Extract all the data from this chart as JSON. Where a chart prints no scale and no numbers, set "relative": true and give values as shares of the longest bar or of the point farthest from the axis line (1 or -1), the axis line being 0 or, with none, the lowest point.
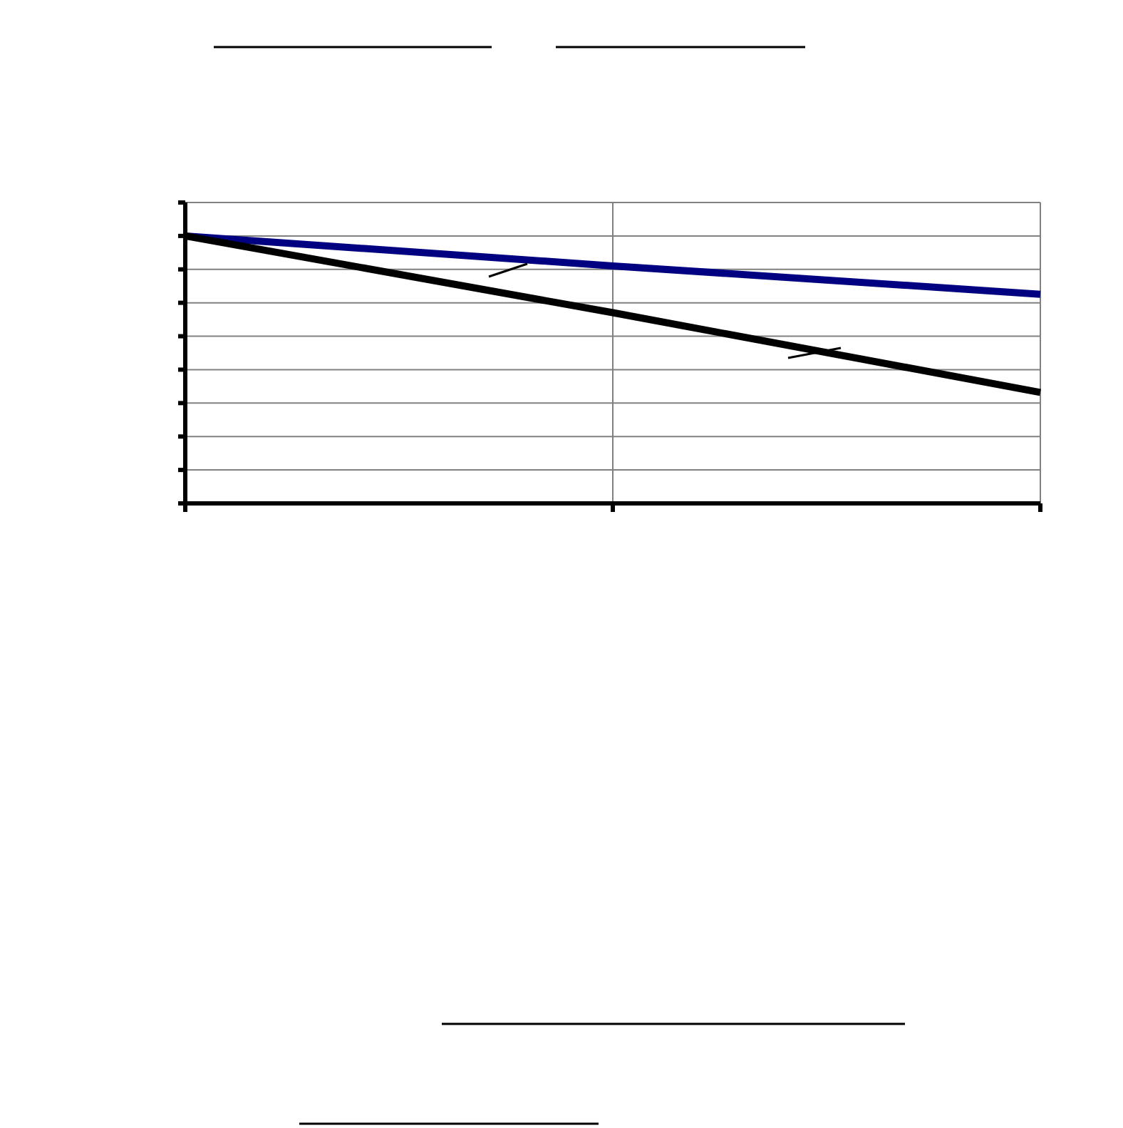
{
  "chart_data": {
    "type": "line",
    "relative": true,
    "categories": [
      null,
      null,
      null
    ],
    "grid": true,
    "series": [
      {
        "color": "#000080",
        "values": [
          1,
          0.888,
          0.782
        ]
      },
      {
        "color": "#000000",
        "values": [
          1,
          0.713,
          0.415
        ]
      }
    ]
  }
}
